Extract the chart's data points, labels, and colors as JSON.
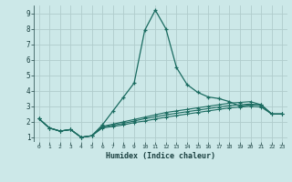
{
  "xlabel": "Humidex (Indice chaleur)",
  "background_color": "#cce8e8",
  "grid_color": "#b0cccc",
  "line_color": "#1a6b60",
  "xlim": [
    -0.5,
    23.5
  ],
  "ylim": [
    0.7,
    9.5
  ],
  "x_ticks": [
    0,
    1,
    2,
    3,
    4,
    5,
    6,
    7,
    8,
    9,
    10,
    11,
    12,
    13,
    14,
    15,
    16,
    17,
    18,
    19,
    20,
    21,
    22,
    23
  ],
  "y_ticks": [
    1,
    2,
    3,
    4,
    5,
    6,
    7,
    8,
    9
  ],
  "series": [
    [
      2.2,
      1.6,
      1.4,
      1.5,
      1.0,
      1.1,
      1.8,
      2.7,
      3.6,
      4.5,
      7.9,
      9.2,
      8.0,
      5.5,
      4.4,
      3.9,
      3.6,
      3.5,
      3.3,
      3.0,
      3.1,
      3.1,
      2.5,
      2.5
    ],
    [
      2.2,
      1.6,
      1.4,
      1.5,
      1.0,
      1.1,
      1.7,
      1.85,
      2.0,
      2.15,
      2.3,
      2.45,
      2.6,
      2.7,
      2.8,
      2.9,
      3.0,
      3.1,
      3.2,
      3.25,
      3.3,
      3.1,
      2.5,
      2.5
    ],
    [
      2.2,
      1.6,
      1.4,
      1.5,
      1.0,
      1.1,
      1.65,
      1.78,
      1.9,
      2.05,
      2.2,
      2.32,
      2.45,
      2.55,
      2.65,
      2.75,
      2.85,
      2.95,
      3.05,
      3.1,
      3.15,
      3.05,
      2.5,
      2.5
    ],
    [
      2.2,
      1.6,
      1.4,
      1.5,
      1.0,
      1.1,
      1.6,
      1.7,
      1.8,
      1.95,
      2.05,
      2.18,
      2.3,
      2.4,
      2.5,
      2.6,
      2.7,
      2.8,
      2.9,
      2.95,
      3.0,
      2.95,
      2.5,
      2.5
    ]
  ]
}
